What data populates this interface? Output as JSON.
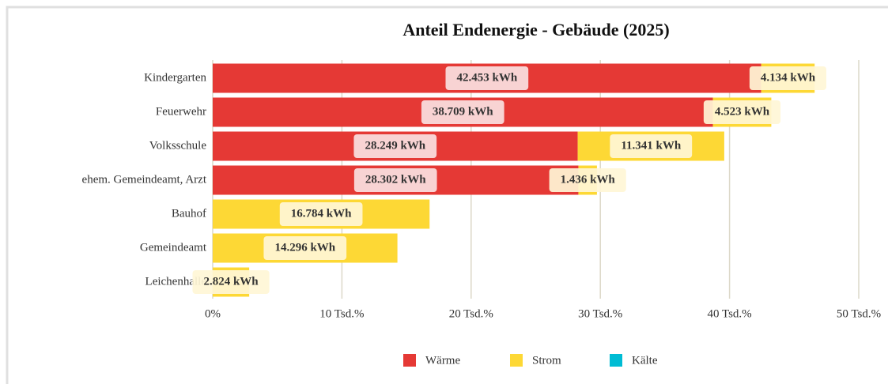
{
  "chart_data": {
    "type": "stacked-bar-horizontal",
    "title": "Anteil Endenergie - Gebäude (2025)",
    "categories": [
      "Kindergarten",
      "Feuerwehr",
      "Volksschule",
      "ehem. Gemeindeamt, Arzt",
      "Bauhof",
      "Gemeindeamt",
      "Leichenhalle"
    ],
    "series": [
      {
        "name": "Wärme",
        "color": "#e53935",
        "values": [
          42453,
          38709,
          28249,
          28302,
          null,
          null,
          null
        ],
        "value_labels": [
          "42.453 kWh",
          "38.709 kWh",
          "28.249 kWh",
          "28.302 kWh",
          null,
          null,
          null
        ]
      },
      {
        "name": "Strom",
        "color": "#fdd835",
        "values": [
          4134,
          4523,
          11341,
          1436,
          16784,
          14296,
          2824
        ],
        "value_labels": [
          "4.134 kWh",
          "4.523 kWh",
          "11.341 kWh",
          "1.436 kWh",
          "16.784 kWh",
          "14.296 kWh",
          "2.824 kWh"
        ]
      },
      {
        "name": "Kälte",
        "color": "#00bcd4",
        "values": [
          null,
          null,
          null,
          null,
          null,
          null,
          null
        ]
      }
    ],
    "xlim": [
      0,
      50000
    ],
    "xticks": [
      {
        "value": 0,
        "label": "0%"
      },
      {
        "value": 10000,
        "label": "10 Tsd.%"
      },
      {
        "value": 20000,
        "label": "20 Tsd.%"
      },
      {
        "value": 30000,
        "label": "30 Tsd.%"
      },
      {
        "value": 40000,
        "label": "40 Tsd.%"
      },
      {
        "value": 50000,
        "label": "50 Tsd.%"
      }
    ],
    "grid": true,
    "legend": "bottom"
  }
}
